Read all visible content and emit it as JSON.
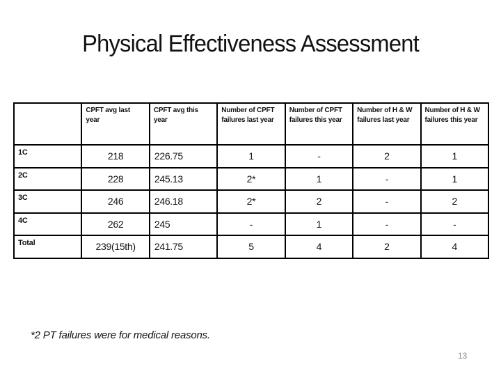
{
  "slide": {
    "title": "Physical Effectiveness Assessment",
    "footnote": "*2 PT failures were for medical reasons.",
    "page_number": "13"
  },
  "colors": {
    "text": "#121212",
    "table_border": "#000000",
    "page_number_gray": "#8c8c8c",
    "background": "#ffffff"
  },
  "table": {
    "columns": [
      "",
      "CPFT avg last year",
      "CPFT avg this year",
      "Number of CPFT failures last year",
      "Number of CPFT failures this year",
      "Number of H & W failures last year",
      "Number of H & W failures this year"
    ],
    "rows": [
      {
        "label": "1C",
        "values": [
          "218",
          "226.75",
          "1",
          "-",
          "2",
          "1"
        ]
      },
      {
        "label": "2C",
        "values": [
          "228",
          "245.13",
          "2*",
          "1",
          "-",
          "1"
        ]
      },
      {
        "label": "3C",
        "values": [
          "246",
          "246.18",
          "2*",
          "2",
          "-",
          "2"
        ]
      },
      {
        "label": "4C",
        "values": [
          "262",
          "245",
          "-",
          "1",
          "-",
          "-"
        ]
      },
      {
        "label": "Total",
        "values": [
          "239(15th)",
          "241.75",
          "5",
          "4",
          "2",
          "4"
        ]
      }
    ]
  }
}
